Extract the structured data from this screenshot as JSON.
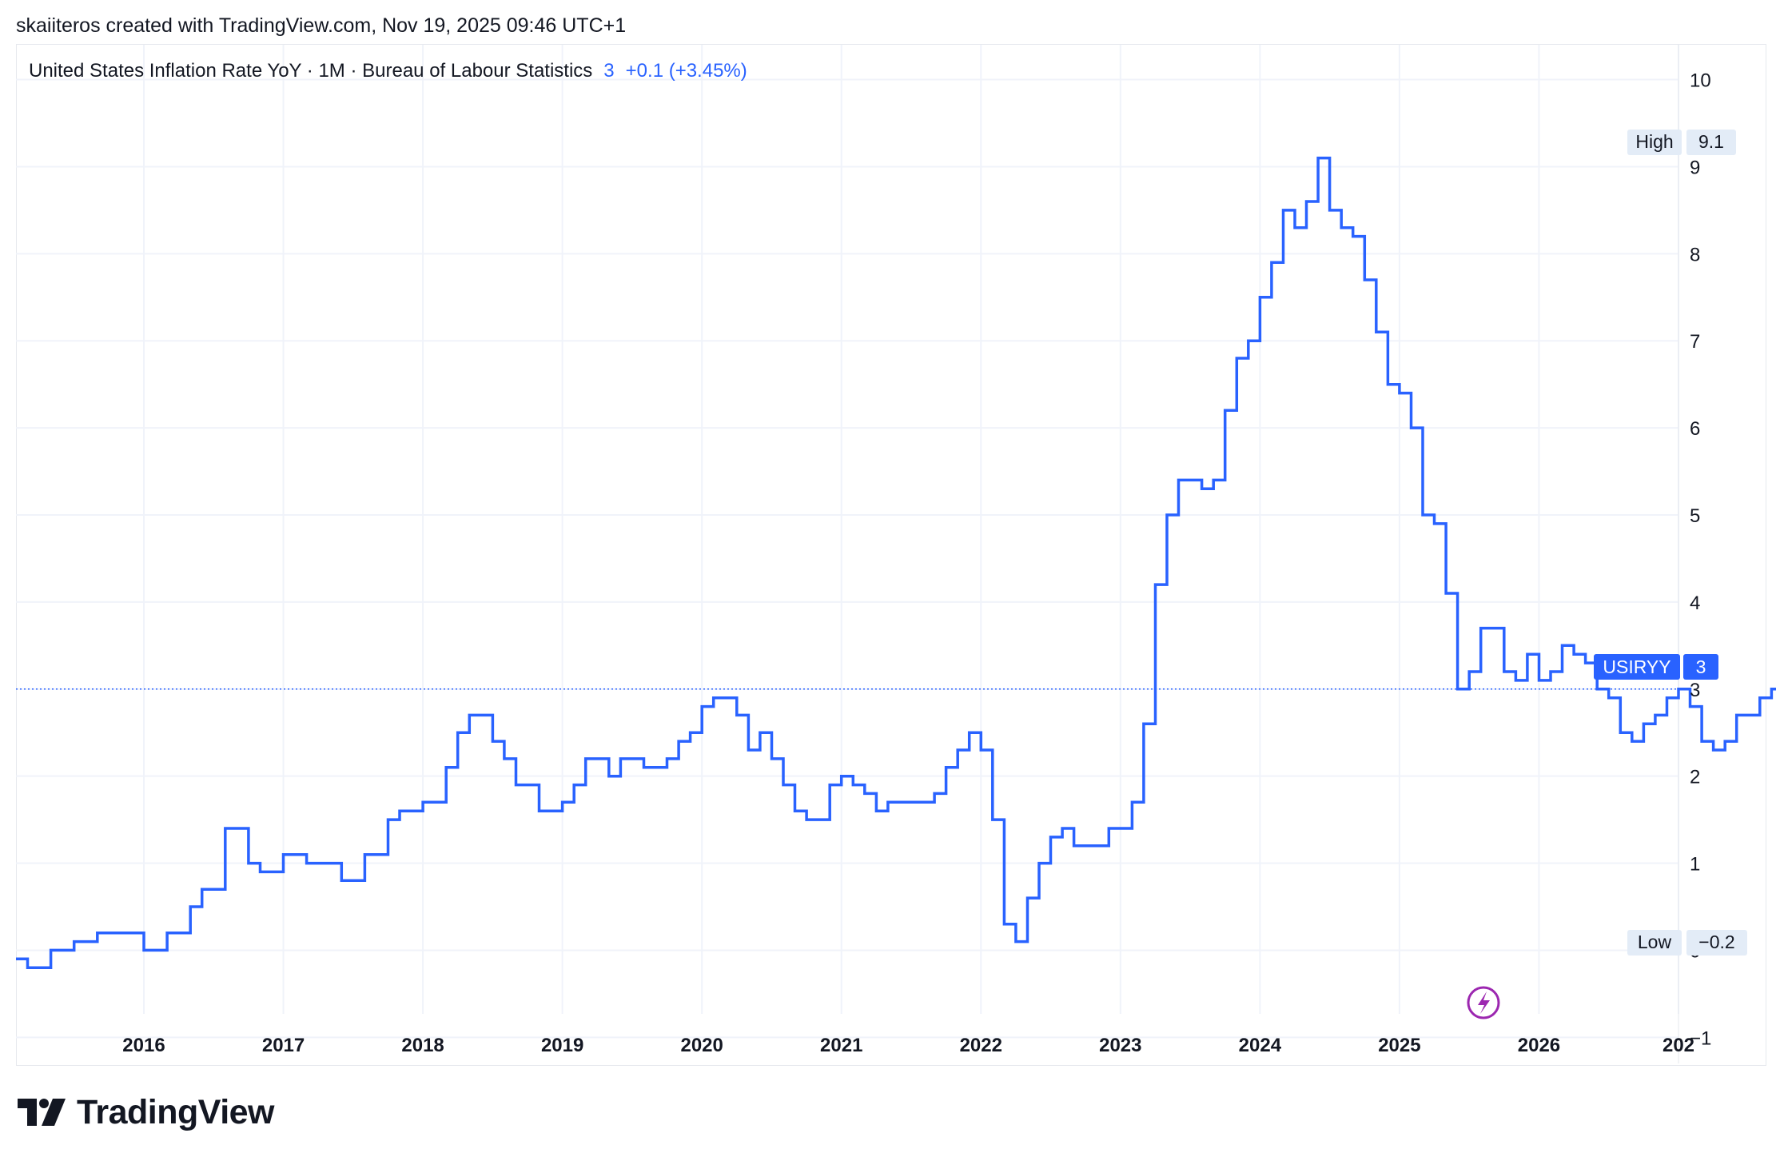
{
  "header": {
    "credit": "skaiiteros created with TradingView.com, Nov 19, 2025 09:46 UTC+1"
  },
  "legend": {
    "title": "United States Inflation Rate YoY · 1M · Bureau of Labour Statistics",
    "last_value": "3",
    "change": "+0.1 (+3.45%)"
  },
  "markers": {
    "high_label": "High",
    "high_value": "9.1",
    "low_label": "Low",
    "low_value": "−0.2",
    "symbol": "USIRYY",
    "symbol_value": "3"
  },
  "footer": {
    "brand": "TradingView"
  },
  "colors": {
    "line": "#2962ff",
    "grid": "#f0f3fa",
    "text": "#131722",
    "badge_bg": "#e3ecf7",
    "lightning": "#9c27b0"
  },
  "icons": [
    "lightning-icon",
    "tradingview-logo-icon"
  ],
  "chart_data": {
    "type": "line",
    "step": true,
    "ylim": [
      -1.3,
      10.4
    ],
    "xlim": [
      "2015-02",
      "2027-01"
    ],
    "y_ticks": [
      -1,
      0,
      1,
      2,
      3,
      4,
      5,
      6,
      7,
      8,
      9,
      10
    ],
    "y_tick_labels": [
      "−1",
      "0",
      "1",
      "2",
      "3",
      "4",
      "5",
      "6",
      "7",
      "8",
      "9",
      "10"
    ],
    "x_tick_labels": [
      "2016",
      "2017",
      "2018",
      "2019",
      "2020",
      "2021",
      "2022",
      "2023",
      "2024",
      "2025",
      "2026",
      "202"
    ],
    "grid": true,
    "series": [
      {
        "start": "2015-02",
        "values": [
          -0.1,
          -0.2,
          -0.2,
          0.0,
          0.0,
          0.1,
          0.1,
          0.2,
          0.2,
          0.2,
          0.2,
          0.0,
          0.0,
          0.2,
          0.2,
          0.5,
          0.7,
          0.7,
          1.4,
          1.4,
          1.0,
          0.9,
          0.9,
          1.1,
          1.1,
          1.0,
          1.0,
          1.0,
          0.8,
          0.8,
          1.1,
          1.1,
          1.5,
          1.6,
          1.6,
          1.7,
          1.7,
          2.1,
          2.5,
          2.7,
          2.7,
          2.4,
          2.2,
          1.9,
          1.9,
          1.6,
          1.6,
          1.7,
          1.9,
          2.2,
          2.2,
          2.0,
          2.2,
          2.2,
          2.1,
          2.1,
          2.2,
          2.4,
          2.5,
          2.8,
          2.9,
          2.9,
          2.7,
          2.3,
          2.5,
          2.2,
          1.9,
          1.6,
          1.5,
          1.5,
          1.9,
          2.0,
          1.9,
          1.8,
          1.6,
          1.7,
          1.7,
          1.7,
          1.7,
          1.8,
          2.1,
          2.3,
          2.5,
          2.3,
          1.5,
          0.3,
          0.1,
          0.6,
          1.0,
          1.3,
          1.4,
          1.2,
          1.2,
          1.2,
          1.4,
          1.4,
          1.7,
          2.6,
          4.2,
          5.0,
          5.4,
          5.4,
          5.3,
          5.4,
          6.2,
          6.8,
          7.0,
          7.5,
          7.9,
          8.5,
          8.3,
          8.6,
          9.1,
          8.5,
          8.3,
          8.2,
          7.7,
          7.1,
          6.5,
          6.4,
          6.0,
          5.0,
          4.9,
          4.1,
          3.0,
          3.2,
          3.7,
          3.7,
          3.2,
          3.1,
          3.4,
          3.1,
          3.2,
          3.5,
          3.4,
          3.3,
          3.0,
          2.9,
          2.5,
          2.4,
          2.6,
          2.7,
          2.9,
          3.0,
          2.8,
          2.4,
          2.3,
          2.4,
          2.7,
          2.7,
          2.9,
          3.0
        ]
      }
    ],
    "high": 9.1,
    "low": -0.2,
    "last": 3
  }
}
